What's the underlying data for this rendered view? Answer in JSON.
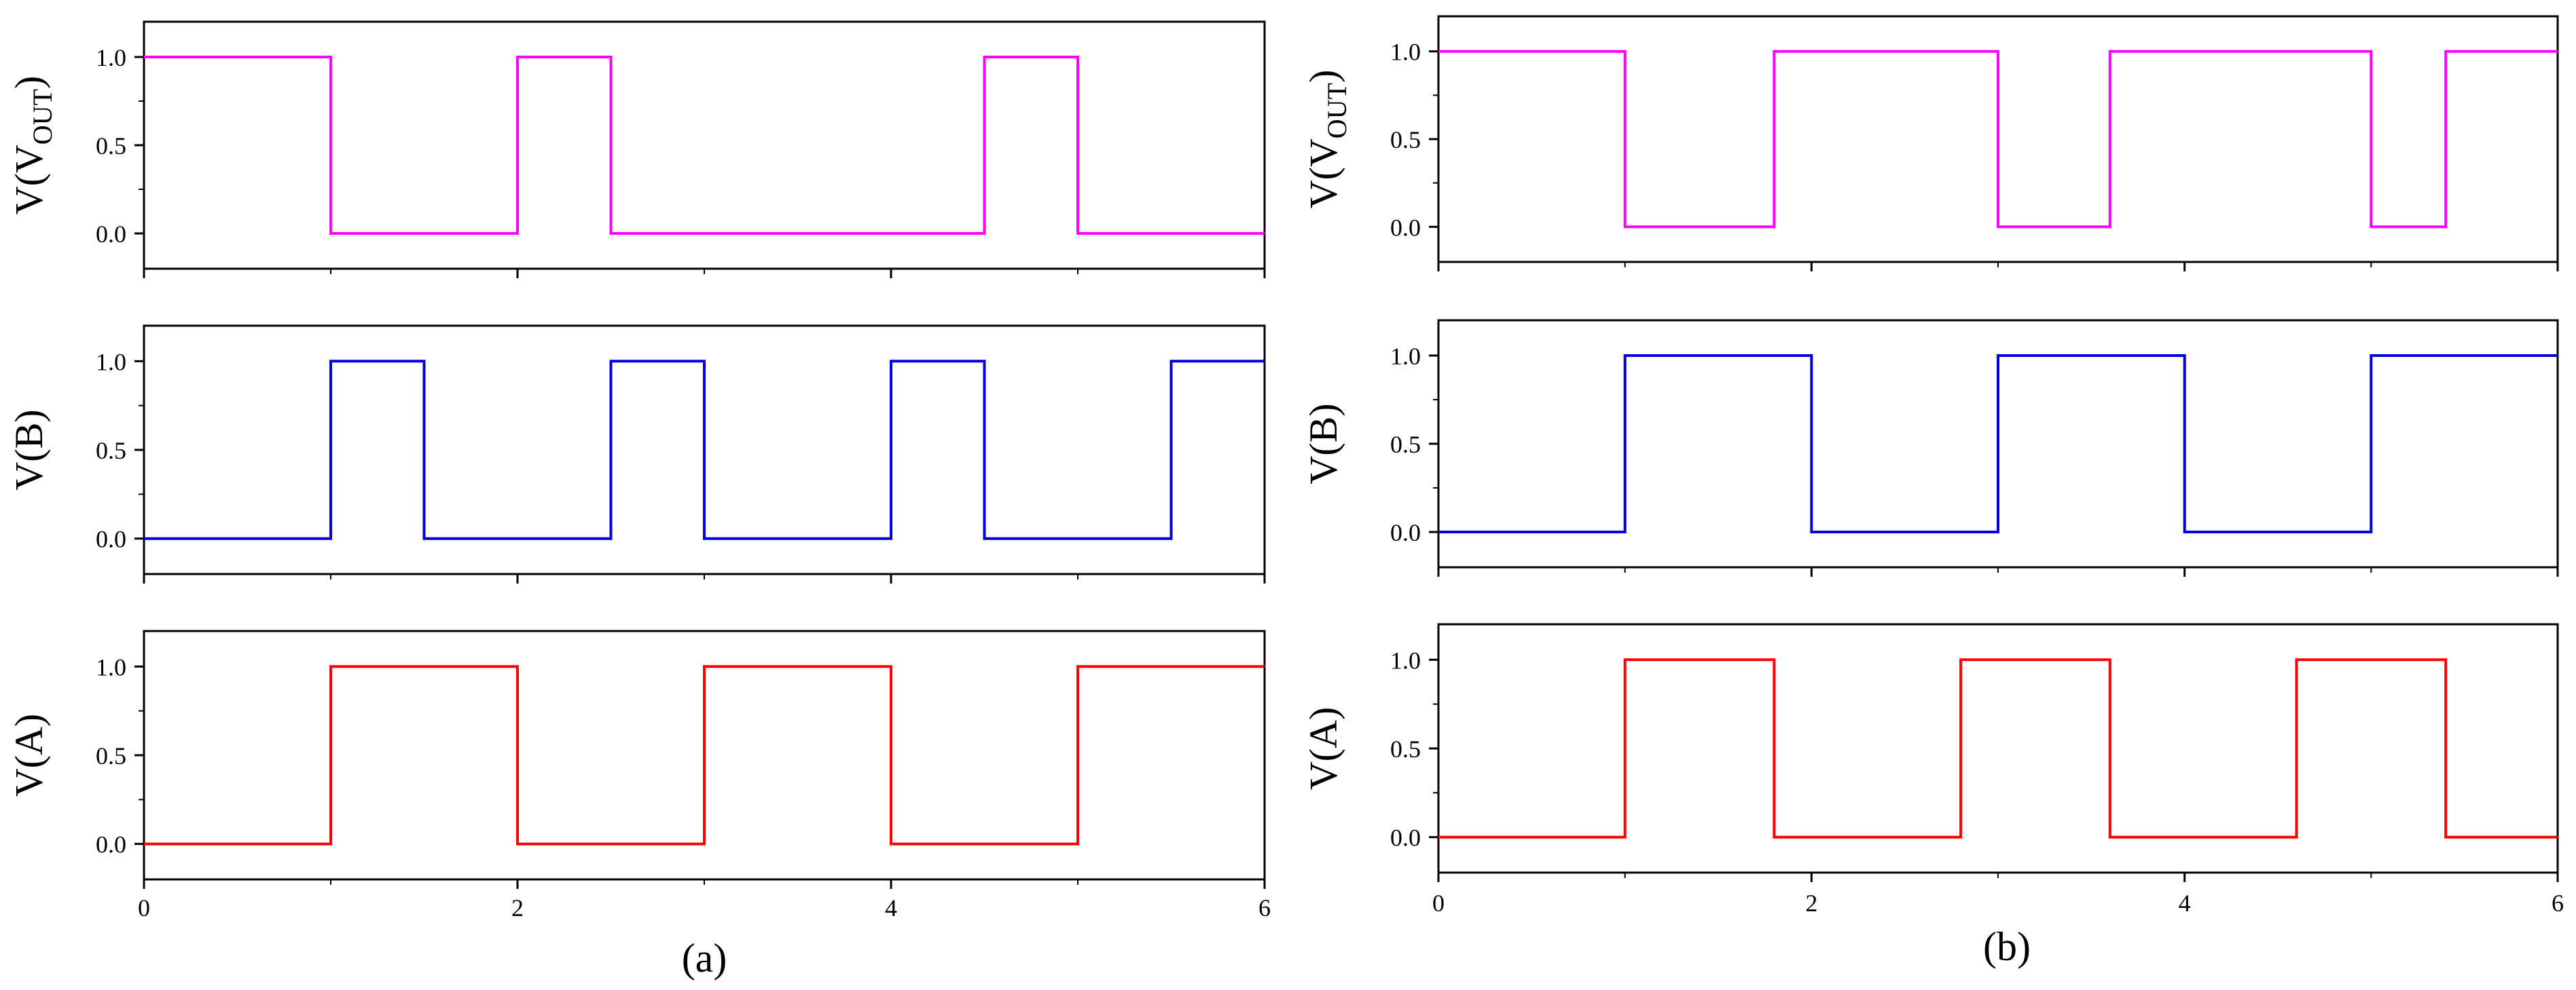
{
  "chart_data": [
    {
      "id": "a",
      "caption": "(a)",
      "type": "line",
      "step": true,
      "xlim": [
        0,
        6
      ],
      "xticks": [
        "0",
        "2",
        "4",
        "6"
      ],
      "panels": [
        {
          "name": "vout",
          "ylabel": {
            "main": "V(V",
            "sub": "OUT",
            "close": ")"
          },
          "color": "#ff00ff",
          "ylim": [
            -0.2,
            1.2
          ],
          "yticks": [
            "0.0",
            "0.5",
            "1.0"
          ],
          "x": [
            0,
            1,
            1,
            2,
            2,
            2.5,
            2.5,
            4.5,
            4.5,
            5,
            5,
            6
          ],
          "y": [
            1,
            1,
            0,
            0,
            1,
            1,
            0,
            0,
            1,
            1,
            0,
            0
          ]
        },
        {
          "name": "b",
          "ylabel": {
            "main": "V(B)",
            "sub": "",
            "close": ""
          },
          "color": "#0000dd",
          "ylim": [
            -0.2,
            1.2
          ],
          "yticks": [
            "0.0",
            "0.5",
            "1.0"
          ],
          "x": [
            0,
            1,
            1,
            1.5,
            1.5,
            2.5,
            2.5,
            3,
            3,
            4,
            4,
            4.5,
            4.5,
            5.5,
            5.5,
            6
          ],
          "y": [
            0,
            0,
            1,
            1,
            0,
            0,
            1,
            1,
            0,
            0,
            1,
            1,
            0,
            0,
            1,
            1
          ]
        },
        {
          "name": "a",
          "ylabel": {
            "main": "V(A)",
            "sub": "",
            "close": ""
          },
          "color": "#ff0000",
          "ylim": [
            -0.2,
            1.2
          ],
          "yticks": [
            "0.0",
            "0.5",
            "1.0"
          ],
          "x": [
            0,
            1,
            1,
            2,
            2,
            3,
            3,
            4,
            4,
            5,
            5,
            6
          ],
          "y": [
            0,
            0,
            1,
            1,
            0,
            0,
            1,
            1,
            0,
            0,
            1,
            1
          ]
        }
      ]
    },
    {
      "id": "b",
      "caption": "(b)",
      "type": "line",
      "step": true,
      "xlim": [
        0,
        6
      ],
      "xticks": [
        "0",
        "2",
        "4",
        "6"
      ],
      "panels": [
        {
          "name": "vout",
          "ylabel": {
            "main": "V(V",
            "sub": "OUT",
            "close": ")"
          },
          "color": "#ff00ff",
          "ylim": [
            -0.2,
            1.2
          ],
          "yticks": [
            "0.0",
            "0.5",
            "1.0"
          ],
          "x": [
            0,
            1,
            1,
            1.8,
            1.8,
            3,
            3,
            3.6,
            3.6,
            5,
            5,
            5.4,
            5.4,
            6
          ],
          "y": [
            1,
            1,
            0,
            0,
            1,
            1,
            0,
            0,
            1,
            1,
            0,
            0,
            1,
            1
          ]
        },
        {
          "name": "b",
          "ylabel": {
            "main": "V(B)",
            "sub": "",
            "close": ""
          },
          "color": "#0000dd",
          "ylim": [
            -0.2,
            1.2
          ],
          "yticks": [
            "0.0",
            "0.5",
            "1.0"
          ],
          "x": [
            0,
            1,
            1,
            2,
            2,
            3,
            3,
            4,
            4,
            5,
            5,
            6
          ],
          "y": [
            0,
            0,
            1,
            1,
            0,
            0,
            1,
            1,
            0,
            0,
            1,
            1
          ]
        },
        {
          "name": "a",
          "ylabel": {
            "main": "V(A)",
            "sub": "",
            "close": ""
          },
          "color": "#ff0000",
          "ylim": [
            -0.2,
            1.2
          ],
          "yticks": [
            "0.0",
            "0.5",
            "1.0"
          ],
          "x": [
            0,
            1,
            1,
            1.8,
            1.8,
            2.8,
            2.8,
            3.6,
            3.6,
            4.6,
            4.6,
            5.4,
            5.4,
            6
          ],
          "y": [
            0,
            0,
            1,
            1,
            0,
            0,
            1,
            1,
            0,
            0,
            1,
            1,
            0,
            0
          ]
        }
      ]
    }
  ]
}
